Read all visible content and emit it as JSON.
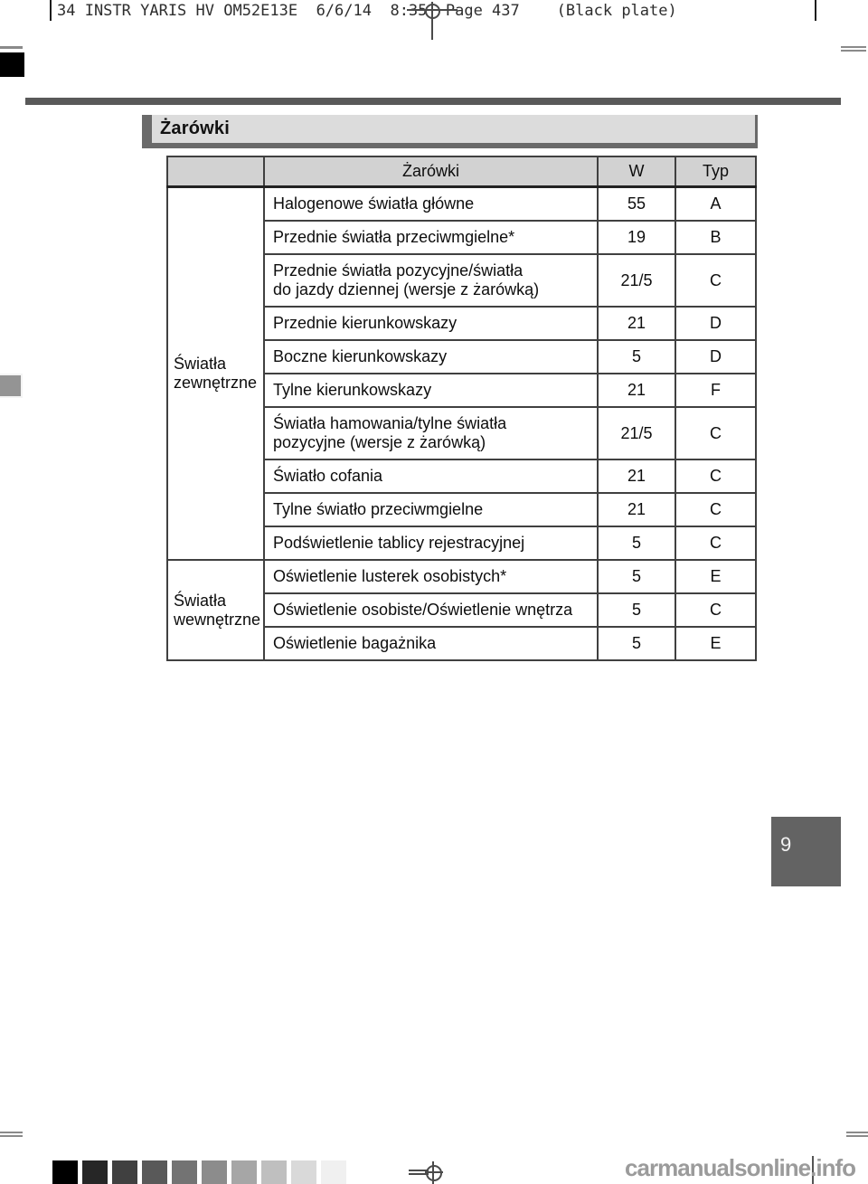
{
  "print_header": {
    "text": "34 INSTR YARIS HV OM52E13E  6/6/14  8:35  Page 437    (Black plate)"
  },
  "section": {
    "title": "Żarówki"
  },
  "table": {
    "headers": {
      "group": "",
      "bulbs": "Żarówki",
      "watt": "W",
      "type": "Typ"
    },
    "groups": [
      {
        "label": "Światła\nzewnętrzne",
        "rows": [
          {
            "name": "Halogenowe światła główne",
            "w": "55",
            "typ": "A"
          },
          {
            "name": "Przednie światła przeciwmgielne*",
            "w": "19",
            "typ": "B"
          },
          {
            "name": "Przednie światła pozycyjne/światła\ndo jazdy dziennej (wersje z żarówką)",
            "w": "21/5",
            "typ": "C"
          },
          {
            "name": "Przednie kierunkowskazy",
            "w": "21",
            "typ": "D"
          },
          {
            "name": "Boczne kierunkowskazy",
            "w": "5",
            "typ": "D"
          },
          {
            "name": "Tylne kierunkowskazy",
            "w": "21",
            "typ": "F"
          },
          {
            "name": "Światła hamowania/tylne światła\npozycyjne (wersje z żarówką)",
            "w": "21/5",
            "typ": "C"
          },
          {
            "name": "Światło cofania",
            "w": "21",
            "typ": "C"
          },
          {
            "name": "Tylne światło przeciwmgielne",
            "w": "21",
            "typ": "C"
          },
          {
            "name": "Podświetlenie tablicy rejestracyjnej",
            "w": "5",
            "typ": "C"
          }
        ]
      },
      {
        "label": "Światła\nwewnętrzne",
        "rows": [
          {
            "name": "Oświetlenie lusterek osobistych*",
            "w": "5",
            "typ": "E"
          },
          {
            "name": "Oświetlenie osobiste/Oświetlenie wnętrza",
            "w": "5",
            "typ": "C"
          },
          {
            "name": "Oświetlenie bagażnika",
            "w": "5",
            "typ": "E"
          }
        ]
      }
    ]
  },
  "page_number": "9",
  "footer": {
    "watermark": "carmanualsonline.info",
    "calibration_colors": [
      "#000000",
      "#262626",
      "#404040",
      "#595959",
      "#737373",
      "#8c8c8c",
      "#a6a6a6",
      "#bfbfbf",
      "#d9d9d9",
      "#f0f0f0"
    ]
  },
  "colors": {
    "rule_gray": "#595959",
    "section_bar_light": "#dcdcdc",
    "section_bar_dark": "#6a6a6a",
    "table_header_bg": "#d2d2d2",
    "page_number_bg": "#636363",
    "watermark_gray": "#9b9b9b"
  }
}
